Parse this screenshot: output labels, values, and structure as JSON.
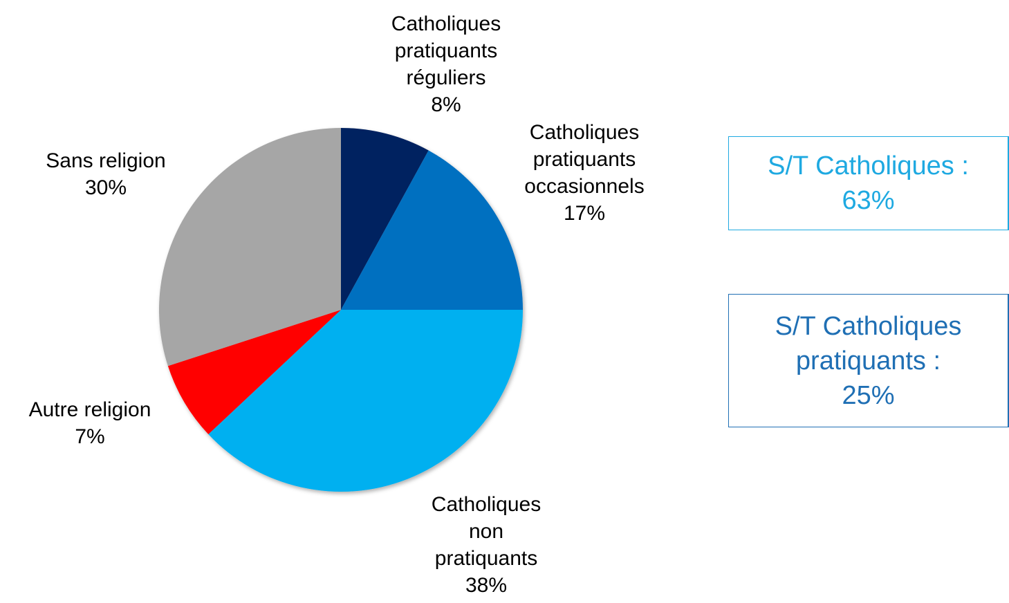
{
  "chart_data": {
    "type": "pie",
    "categories": [
      "Catholiques pratiquants réguliers",
      "Catholiques pratiquants occasionnels",
      "Catholiques non pratiquants",
      "Autre religion",
      "Sans religion"
    ],
    "values": [
      8,
      17,
      38,
      7,
      30
    ],
    "value_labels": [
      "8%",
      "17%",
      "38%",
      "7%",
      "30%"
    ],
    "colors": [
      "#002060",
      "#0070c0",
      "#00b0f0",
      "#ff0000",
      "#a6a6a6"
    ],
    "annotations": [
      {
        "lines": [
          "S/T Catholiques :",
          "63%"
        ],
        "color": "#1ea9e1"
      },
      {
        "lines": [
          "S/T Catholiques",
          "pratiquants  :",
          "25%"
        ],
        "color": "#1f6fb4"
      }
    ]
  }
}
